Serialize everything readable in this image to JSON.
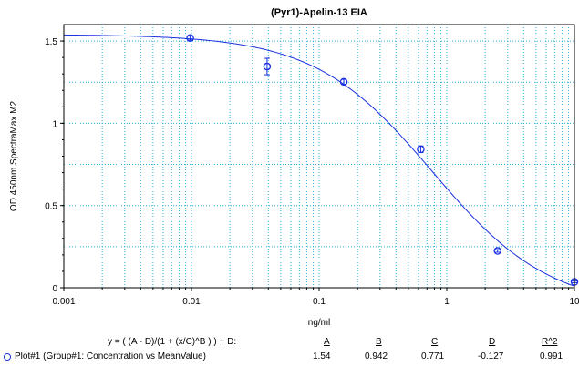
{
  "chart_data": {
    "type": "scatter",
    "title": "(Pyr1)-Apelin-13 EIA",
    "xlabel": "ng/ml",
    "ylabel": "OD 450nm SpectraMax M2",
    "xscale": "log",
    "xlim": [
      0.001,
      10
    ],
    "ylim": [
      0,
      1.6
    ],
    "grid": true,
    "x_ticks": [
      "0.001",
      "0.01",
      "0.1",
      "1",
      "10"
    ],
    "y_ticks": [
      "0",
      "0.5",
      "1",
      "1.5"
    ],
    "series": [
      {
        "points": [
          {
            "x": 0.00977,
            "y": 1.518,
            "err": 0.012
          },
          {
            "x": 0.0391,
            "y": 1.345,
            "err": 0.05
          },
          {
            "x": 0.156,
            "y": 1.252,
            "err": 0.015
          },
          {
            "x": 0.625,
            "y": 0.842,
            "err": 0.02
          },
          {
            "x": 2.5,
            "y": 0.224,
            "err": 0.008
          },
          {
            "x": 10,
            "y": 0.036,
            "err": 0.005
          }
        ]
      }
    ],
    "fit": {
      "equation": "y = ( (A - D)/(1 + (x/C)^B ) ) + D:",
      "A": 1.54,
      "B": 0.942,
      "C": 0.771,
      "D": -0.127
    }
  },
  "legend": {
    "equation": "y = ( (A - D)/(1 + (x/C)^B ) ) + D:",
    "headers": [
      "A",
      "B",
      "C",
      "D",
      "R^2"
    ],
    "plot_label": "Plot#1 (Group#1: Concentration vs MeanValue)",
    "values": [
      "1.54",
      "0.942",
      "0.771",
      "-0.127",
      "0.991"
    ],
    "marker_icon": "circle-marker-icon"
  }
}
